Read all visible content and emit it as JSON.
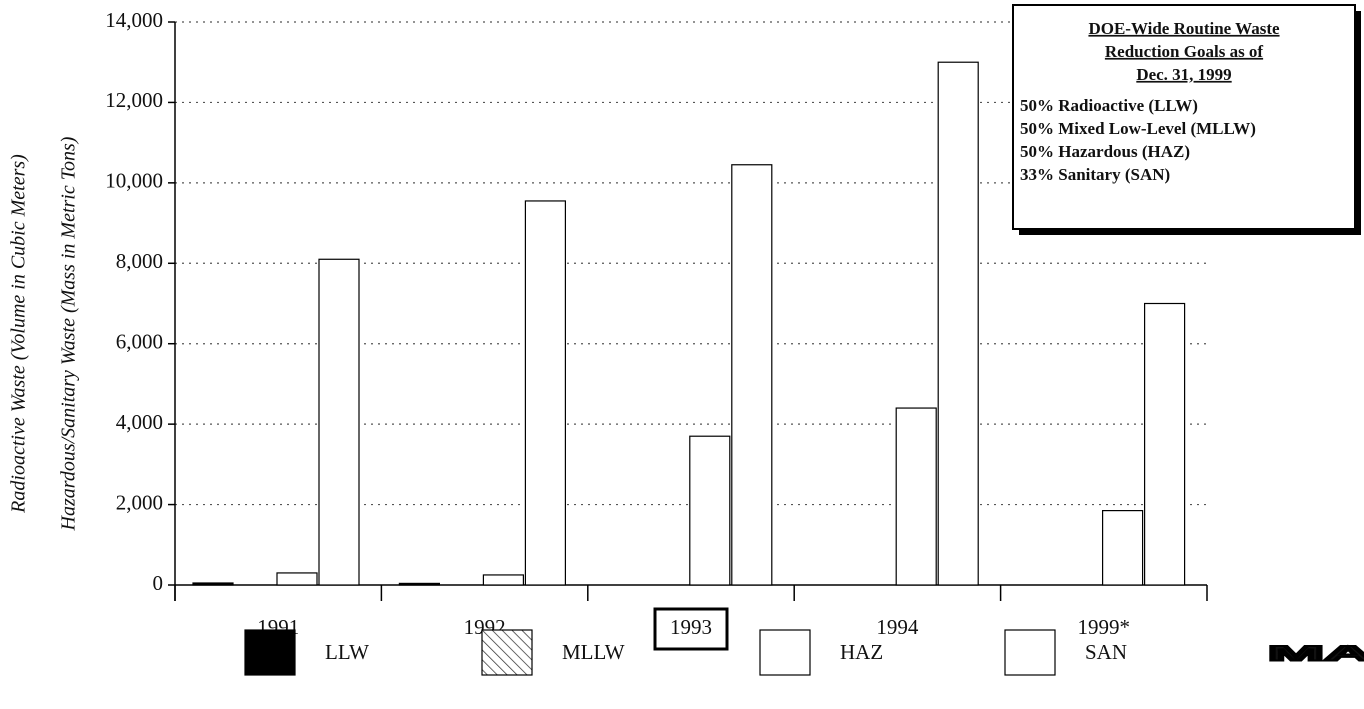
{
  "chart_data": {
    "type": "bar",
    "y_label": [
      "Radioactive Waste (Volume in Cubic Meters)",
      "Hazardous/Sanitary Waste (Mass in Metric Tons)"
    ],
    "categories": [
      "1991",
      "1992",
      "1993",
      "1994",
      "1999*"
    ],
    "boxed_category": 2,
    "series": [
      {
        "name": "LLW",
        "color": "#000000",
        "values": [
          50,
          40,
          0,
          0,
          0
        ]
      },
      {
        "name": "MLLW",
        "color": "#ffffff",
        "hatch": true,
        "values": [
          0,
          0,
          0,
          0,
          0
        ]
      },
      {
        "name": "HAZ",
        "color": "#ffffff",
        "values": [
          300,
          250,
          3700,
          4400,
          1850
        ]
      },
      {
        "name": "SAN",
        "color": "#ffffff",
        "values": [
          8100,
          9550,
          10450,
          13000,
          7000
        ]
      }
    ],
    "ylim": [
      0,
      14000
    ],
    "yticks": [
      0,
      {
        "value": 2000,
        "label": "2,000"
      },
      {
        "value": 4000,
        "label": "4,000"
      },
      {
        "value": 6000,
        "label": "6,000"
      },
      {
        "value": 8000,
        "label": "8,000"
      },
      {
        "value": 10000,
        "label": "10,000"
      },
      {
        "value": 12000,
        "label": "12,000"
      },
      {
        "value": 14000,
        "label": "14,000"
      }
    ],
    "grid": true,
    "annotation": {
      "title": [
        "DOE-Wide Routine Waste",
        "Reduction Goals as of",
        "Dec. 31, 1999"
      ],
      "lines": [
        "50% Radioactive (LLW)",
        "50% Mixed Low-Level (MLLW)",
        "50% Hazardous (HAZ)",
        "33% Sanitary (SAN)"
      ]
    },
    "watermark": "MAST"
  }
}
